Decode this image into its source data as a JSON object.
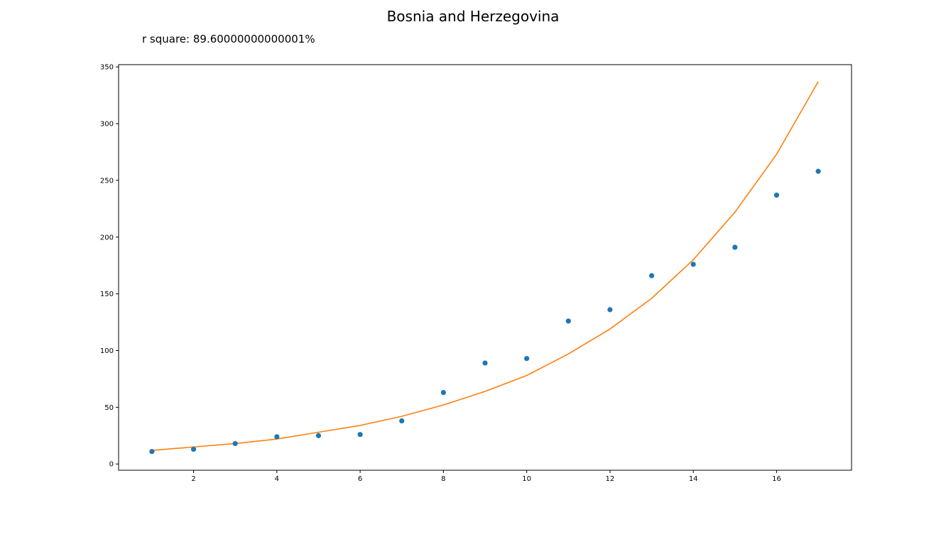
{
  "chart_data": {
    "type": "scatter",
    "title": "Bosnia and Herzegovina",
    "annotation": "r square: 89.60000000000001%",
    "xlabel": "",
    "ylabel": "",
    "xlim": [
      0.2,
      17.8
    ],
    "ylim": [
      -5.5,
      352
    ],
    "xticks": [
      2,
      4,
      6,
      8,
      10,
      12,
      14,
      16
    ],
    "yticks": [
      0,
      50,
      100,
      150,
      200,
      250,
      300,
      350
    ],
    "grid": false,
    "series": [
      {
        "type": "scatter",
        "color": "#1f77b4",
        "x": [
          1,
          2,
          3,
          4,
          5,
          6,
          7,
          8,
          9,
          10,
          11,
          12,
          13,
          14,
          15,
          16,
          17
        ],
        "y": [
          11,
          13,
          18,
          24,
          25,
          26,
          38,
          63,
          89,
          93,
          126,
          136,
          166,
          176,
          191,
          237,
          258
        ]
      },
      {
        "type": "line",
        "color": "#ff7f0e",
        "x": [
          1,
          2,
          3,
          4,
          5,
          6,
          7,
          8,
          9,
          10,
          11,
          12,
          13,
          14,
          15,
          16,
          17
        ],
        "y": [
          12,
          15,
          18,
          22,
          28,
          34,
          42,
          52,
          64,
          78,
          97,
          119,
          146,
          180,
          222,
          273,
          337
        ]
      }
    ]
  }
}
